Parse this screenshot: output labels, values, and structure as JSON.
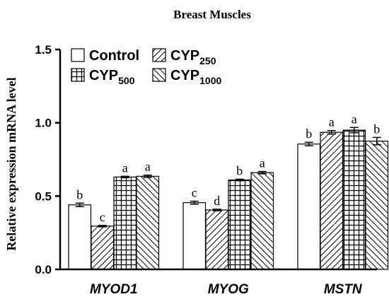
{
  "chart_data": {
    "type": "bar",
    "title": "Breast Muscles",
    "xlabel": "",
    "ylabel": "Relative expression mRNA level",
    "ylim": [
      0,
      1.5
    ],
    "yticks": [
      "0.0",
      "0.5",
      "1.0",
      "1.5"
    ],
    "categories": [
      "MYOD1",
      "MYOG",
      "MSTN"
    ],
    "legend_position": "top-left",
    "series": [
      {
        "name": "Control",
        "name_main": "Control",
        "name_sub": "",
        "pattern": "none",
        "values": [
          0.44,
          0.455,
          0.855
        ],
        "errors": [
          0.012,
          0.01,
          0.012
        ],
        "letters": [
          "b",
          "c",
          "b"
        ]
      },
      {
        "name": "CYP250",
        "name_main": "CYP",
        "name_sub": "250",
        "pattern": "diag-fwd",
        "values": [
          0.295,
          0.405,
          0.935
        ],
        "errors": [
          0.005,
          0.005,
          0.012
        ],
        "letters": [
          "c",
          "d",
          "a"
        ]
      },
      {
        "name": "CYP500",
        "name_main": "CYP",
        "name_sub": "500",
        "pattern": "grid",
        "values": [
          0.63,
          0.61,
          0.95
        ],
        "errors": [
          0.005,
          0.005,
          0.018
        ],
        "letters": [
          "a",
          "b",
          "a"
        ]
      },
      {
        "name": "CYP1000",
        "name_main": "CYP",
        "name_sub": "1000",
        "pattern": "diag-back",
        "values": [
          0.635,
          0.66,
          0.875
        ],
        "errors": [
          0.008,
          0.008,
          0.025
        ],
        "letters": [
          "a",
          "a",
          "b"
        ]
      }
    ]
  }
}
